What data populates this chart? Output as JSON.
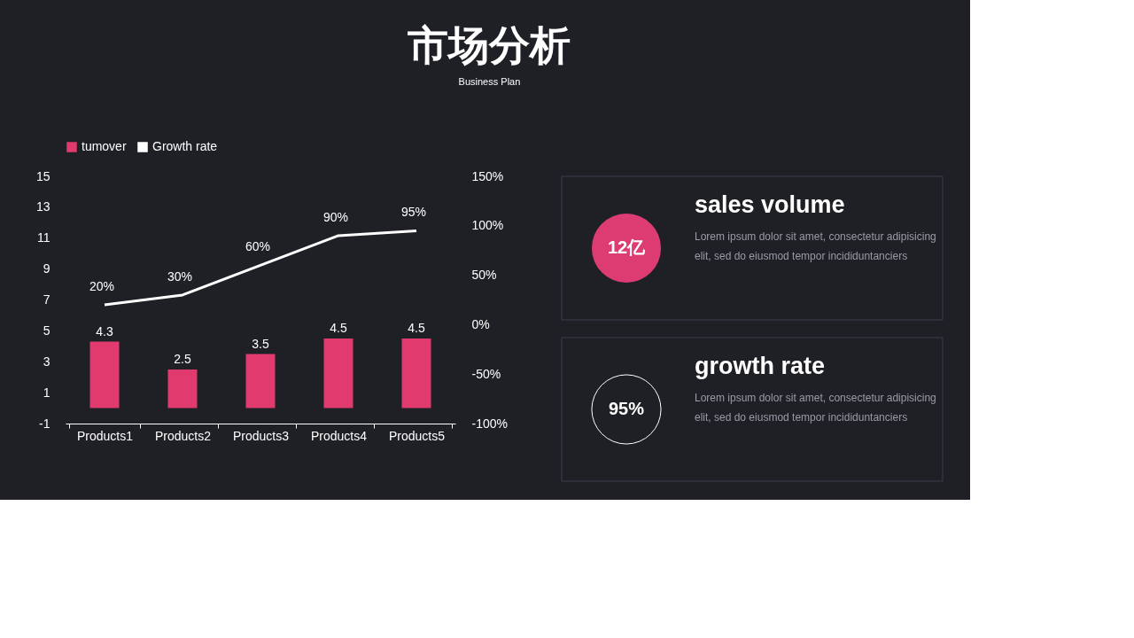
{
  "chart_data": [
    {
      "type": "bar",
      "title": "市场分析",
      "subtitle": "Business Plan",
      "categories": [
        "Products1",
        "Products2",
        "Products3",
        "Products4",
        "Products5"
      ],
      "series": [
        {
          "name": "tumover",
          "type": "bar",
          "color": "#e03a6e",
          "values": [
            4.3,
            2.5,
            3.5,
            4.5,
            4.5
          ],
          "value_labels": [
            "4.3",
            "2.5",
            "3.5",
            "4.5",
            "4.5"
          ]
        },
        {
          "name": "Growth rate",
          "type": "line",
          "axis": "y2",
          "color": "#ffffff",
          "values": [
            20,
            30,
            60,
            90,
            95
          ],
          "value_labels": [
            "20%",
            "30%",
            "60%",
            "90%",
            "95%"
          ]
        }
      ],
      "ylim": [
        -1,
        15
      ],
      "yticks": [
        -1,
        1,
        3,
        5,
        7,
        9,
        11,
        13,
        15
      ],
      "y2lim": [
        -100,
        150
      ],
      "y2ticks": [
        {
          "value": -100,
          "label": "-100%"
        },
        {
          "value": -50,
          "label": "-50%"
        },
        {
          "value": 0,
          "label": "0%"
        },
        {
          "value": 50,
          "label": "50%"
        },
        {
          "value": 100,
          "label": "100%"
        },
        {
          "value": 150,
          "label": "150%"
        }
      ],
      "legend": "top",
      "grid": false
    },
    {
      "type": "other",
      "title": "sales volume",
      "annotations": [
        "12亿",
        "Lorem ipsum dolor sit amet, consectetur adipisicing",
        "elit, sed do eiusmod tempor incididuntanciers"
      ]
    },
    {
      "type": "other",
      "title": "growth rate",
      "annotations": [
        "95%",
        "Lorem ipsum dolor sit amet, consectetur adipisicing",
        "elit, sed do eiusmod tempor incididuntanciers"
      ]
    }
  ]
}
